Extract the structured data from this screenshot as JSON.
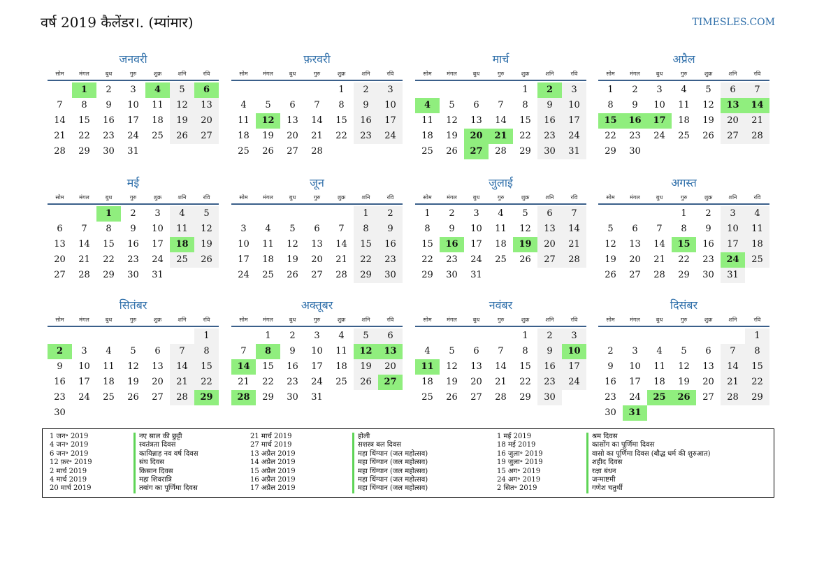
{
  "title": "वर्ष 2019 कैलेंडर।. (म्यांमार)",
  "site": "TIMESLES.COM",
  "weekday_headers": [
    "सोम",
    "मंगल",
    "बुध",
    "गुरु",
    "शुक्र",
    "शनि",
    "रवि"
  ],
  "months": [
    {
      "name": "जनवरी",
      "start": 1,
      "days": 31,
      "holidays": [
        1,
        4,
        6
      ]
    },
    {
      "name": "फ़रवरी",
      "start": 4,
      "days": 28,
      "holidays": [
        12
      ]
    },
    {
      "name": "मार्च",
      "start": 4,
      "days": 31,
      "holidays": [
        2,
        4,
        20,
        21,
        27
      ]
    },
    {
      "name": "अप्रैल",
      "start": 0,
      "days": 30,
      "holidays": [
        13,
        14,
        15,
        16,
        17
      ]
    },
    {
      "name": "मई",
      "start": 2,
      "days": 31,
      "holidays": [
        1,
        18
      ]
    },
    {
      "name": "जून",
      "start": 5,
      "days": 30,
      "holidays": []
    },
    {
      "name": "जुलाई",
      "start": 0,
      "days": 31,
      "holidays": [
        16,
        19
      ]
    },
    {
      "name": "अगस्त",
      "start": 3,
      "days": 31,
      "holidays": [
        15,
        24
      ]
    },
    {
      "name": "सितंबर",
      "start": 6,
      "days": 30,
      "holidays": [
        2,
        29
      ]
    },
    {
      "name": "अक्तूबर",
      "start": 1,
      "days": 31,
      "holidays": [
        8,
        12,
        13,
        14,
        27,
        28
      ]
    },
    {
      "name": "नवंबर",
      "start": 4,
      "days": 30,
      "holidays": [
        10,
        11
      ]
    },
    {
      "name": "दिसंबर",
      "start": 6,
      "days": 31,
      "holidays": [
        25,
        26,
        31
      ]
    }
  ],
  "legend": [
    [
      [
        "1 जन॰ 2019",
        "नए साल की छुट्टी"
      ],
      [
        "4 जन॰ 2019",
        "स्वतंत्रता दिवस"
      ],
      [
        "6 जन॰ 2019",
        "कायिन्नाह नव वर्ष दिवस"
      ],
      [
        "12 फ़र॰ 2019",
        "संघ दिवस"
      ],
      [
        "2 मार्च 2019",
        "किसान दिवस"
      ],
      [
        "4 मार्च 2019",
        "महा शिवरात्रि"
      ],
      [
        "20 मार्च 2019",
        "तबांग का पूर्णिमा दिवस"
      ]
    ],
    [
      [
        "21 मार्च 2019",
        "होली"
      ],
      [
        "27 मार्च 2019",
        "सशस्त्र बल दिवस"
      ],
      [
        "13 अप्रैल 2019",
        "महा थिंग्यान (जल महोत्सव)"
      ],
      [
        "14 अप्रैल 2019",
        "महा थिंग्यान (जल महोत्सव)"
      ],
      [
        "15 अप्रैल 2019",
        "महा थिंग्यान (जल महोत्सव)"
      ],
      [
        "16 अप्रैल 2019",
        "महा थिंग्यान (जल महोत्सव)"
      ],
      [
        "17 अप्रैल 2019",
        "महा थिंग्यान (जल महोत्सव)"
      ]
    ],
    [
      [
        "1 मई 2019",
        "श्रम दिवस"
      ],
      [
        "18 मई 2019",
        "कासोंग का पूर्णिमा दिवस"
      ],
      [
        "16 जुला॰ 2019",
        "वासो का पूर्णिमा दिवस (बौद्ध धर्म की शुरुआत)"
      ],
      [
        "19 जुला॰ 2019",
        "शहीद दिवस"
      ],
      [
        "15 अग॰ 2019",
        "रक्षा बंधन"
      ],
      [
        "24 अग॰ 2019",
        "जन्माष्टमी"
      ],
      [
        "2 सित॰ 2019",
        "गणेश चतुर्थी"
      ]
    ]
  ]
}
